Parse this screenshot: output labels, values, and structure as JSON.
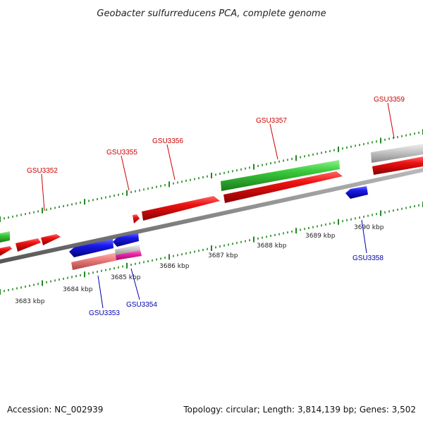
{
  "title": "Geobacter sulfurreducens PCA, complete genome",
  "footer": {
    "accession": "Accession: NC_002939",
    "summary": "Topology: circular; Length: 3,814,139 bp; Genes: 3,502"
  },
  "colors": {
    "red": "#ee1111",
    "blue": "#1a1aee",
    "green": "#3ccc3c",
    "gray": "#c8c8c8",
    "pink": "#ee7f7f",
    "magenta": "#ee22aa",
    "label_top": "#cc0000",
    "label_bottom": "#0000aa",
    "tick": "#228822"
  },
  "scale": {
    "unit": "kbp",
    "labels": [
      "3683 kbp",
      "3684 kbp",
      "3685 kbp",
      "3686 kbp",
      "3687 kbp",
      "3688 kbp",
      "3689 kbp",
      "3690 kbp"
    ]
  },
  "gene_labels": {
    "top": [
      "GSU3352",
      "GSU3355",
      "GSU3356",
      "GSU3357",
      "GSU3359"
    ],
    "bottom": [
      "GSU3353",
      "GSU3354",
      "GSU3358"
    ]
  }
}
